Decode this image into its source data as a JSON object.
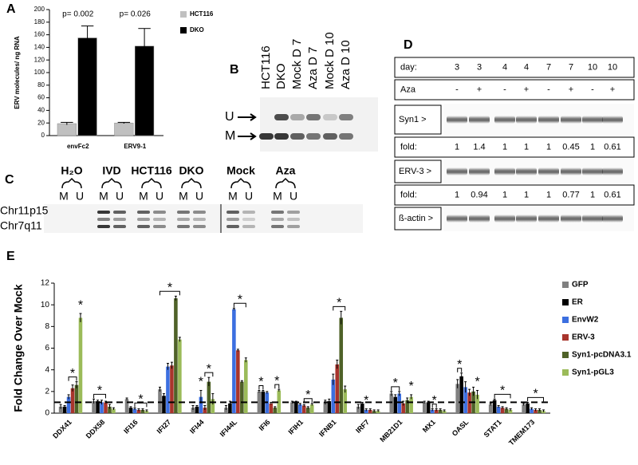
{
  "chart_data": [
    {
      "type": "bar",
      "panel": "A",
      "ylabel": "ERV molecules/ ng RNA",
      "categories": [
        "envFc2",
        "ERV9-1"
      ],
      "series": [
        {
          "name": "HCT116",
          "color": "#c0c0c0",
          "values": [
            19,
            20
          ],
          "errors": [
            2,
            1
          ]
        },
        {
          "name": "DKO",
          "color": "#000000",
          "values": [
            155,
            142
          ],
          "errors": [
            19,
            28
          ]
        }
      ],
      "annotations": [
        "p= 0.002",
        "p= 0.026"
      ],
      "ylim": [
        0,
        200
      ],
      "yticks": [
        0,
        20,
        40,
        60,
        80,
        100,
        120,
        140,
        160,
        180,
        200
      ],
      "legend": "right"
    },
    {
      "type": "bar",
      "panel": "E",
      "ylabel": "Fold Change Over Mock",
      "categories": [
        "DDX41",
        "DDX58",
        "IFI16",
        "IFI27",
        "IFI44",
        "IFI44L",
        "IFI6",
        "IFIH1",
        "IFNB1",
        "IRF7",
        "MB21D1",
        "MX1",
        "OASL",
        "STAT1",
        "TMEM173"
      ],
      "series": [
        {
          "name": "GFP",
          "color": "#808080",
          "values": [
            0.6,
            1.1,
            1.3,
            2.2,
            0.5,
            0.5,
            2.0,
            1.0,
            1.0,
            0.6,
            1.8,
            1.0,
            2.7,
            0.8,
            0.8
          ],
          "errors": [
            0.2,
            0.2,
            0.1,
            0.2,
            0.2,
            0.2,
            0.1,
            0.1,
            0.2,
            0.2,
            0.2,
            0.1,
            0.4,
            0.1,
            0.1
          ]
        },
        {
          "name": "ER",
          "color": "#000000",
          "values": [
            0.6,
            1.1,
            0.5,
            1.6,
            0.6,
            0.9,
            2.0,
            1.0,
            1.1,
            0.9,
            1.5,
            1.0,
            3.4,
            1.2,
            0.9
          ],
          "errors": [
            0.1,
            0.1,
            0.1,
            0.2,
            0.1,
            0.2,
            0.1,
            0.1,
            0.2,
            0.1,
            0.2,
            0.1,
            0.3,
            0.1,
            0.1
          ]
        },
        {
          "name": "EnvW2",
          "color": "#3c6fe0",
          "values": [
            1.5,
            1.0,
            0.4,
            4.3,
            1.5,
            9.6,
            1.9,
            0.8,
            3.1,
            0.3,
            1.8,
            0.3,
            2.4,
            0.6,
            0.4
          ],
          "errors": [
            0.2,
            0.2,
            0.1,
            0.3,
            0.6,
            0.1,
            0.1,
            0.1,
            0.5,
            0.1,
            0.2,
            0.1,
            0.5,
            0.1,
            0.1
          ]
        },
        {
          "name": "ERV-3",
          "color": "#a8342c",
          "values": [
            2.3,
            1.0,
            0.3,
            4.4,
            0.5,
            5.8,
            0.9,
            0.7,
            4.5,
            0.3,
            0.9,
            0.3,
            1.9,
            0.5,
            0.3
          ],
          "errors": [
            0.3,
            0.1,
            0.1,
            0.3,
            0.2,
            0.1,
            0.1,
            0.1,
            0.4,
            0.1,
            0.2,
            0.1,
            0.3,
            0.1,
            0.1
          ]
        },
        {
          "name": "Syn1-pcDNA3.1",
          "color": "#4f6228",
          "values": [
            2.6,
            0.6,
            0.3,
            10.6,
            2.9,
            2.9,
            0.5,
            0.5,
            8.8,
            0.2,
            1.2,
            0.3,
            2.0,
            0.4,
            0.3
          ],
          "errors": [
            0.3,
            0.2,
            0.1,
            0.2,
            0.4,
            0.1,
            0.1,
            0.1,
            0.6,
            0.1,
            0.2,
            0.1,
            0.4,
            0.1,
            0.1
          ]
        },
        {
          "name": "Syn1-pGL3",
          "color": "#9bbb59",
          "values": [
            8.8,
            0.4,
            0.2,
            6.8,
            1.3,
            4.9,
            2.1,
            0.8,
            2.2,
            0.2,
            1.5,
            0.2,
            1.7,
            0.3,
            0.2
          ],
          "errors": [
            0.4,
            0.1,
            0.1,
            0.2,
            0.5,
            0.2,
            0.1,
            0.1,
            0.3,
            0.1,
            0.2,
            0.1,
            0.4,
            0.1,
            0.1
          ]
        }
      ],
      "reference_line": 1,
      "significance": [
        {
          "label": "*",
          "category": "DDX41",
          "series": [
            "EnvW2",
            "Syn1-pcDNA3.1"
          ]
        },
        {
          "label": "*",
          "category": "DDX41",
          "series": [
            "Syn1-pGL3"
          ]
        },
        {
          "label": "*",
          "category": "DDX58",
          "series": [
            "GFP",
            "ERV-3"
          ]
        },
        {
          "label": "*",
          "category": "IFI16",
          "series": [
            "EnvW2",
            "Syn1-pGL3"
          ]
        },
        {
          "label": "*",
          "category": "IFI27",
          "series": [
            "GFP",
            "Syn1-pGL3"
          ]
        },
        {
          "label": "*",
          "category": "IFI44",
          "series": [
            "EnvW2"
          ]
        },
        {
          "label": "*",
          "category": "IFI44",
          "series": [
            "ERV-3",
            "Syn1-pGL3"
          ]
        },
        {
          "label": "*",
          "category": "IFI44L",
          "series": [
            "EnvW2",
            "Syn1-pGL3"
          ]
        },
        {
          "label": "*",
          "category": "IFI6",
          "series": [
            "GFP",
            "ER"
          ]
        },
        {
          "label": "*",
          "category": "IFI6",
          "series": [
            "Syn1-pcDNA3.1",
            "Syn1-pGL3"
          ]
        },
        {
          "label": "*",
          "category": "IFIH1",
          "series": [
            "ERV-3",
            "Syn1-pGL3"
          ]
        },
        {
          "label": "*",
          "category": "IFNB1",
          "series": [
            "EnvW2",
            "Syn1-pGL3"
          ]
        },
        {
          "label": "*",
          "category": "IRF7",
          "series": [
            "EnvW2"
          ]
        },
        {
          "label": "*",
          "category": "MB21D1",
          "series": [
            "GFP",
            "EnvW2"
          ]
        },
        {
          "label": "*",
          "category": "MB21D1",
          "series": [
            "Syn1-pGL3"
          ]
        },
        {
          "label": "*",
          "category": "MX1",
          "series": [
            "EnvW2",
            "ERV-3"
          ]
        },
        {
          "label": "*",
          "category": "OASL",
          "series": [
            "GFP",
            "ER"
          ]
        },
        {
          "label": "*",
          "category": "OASL",
          "series": [
            "Syn1-pGL3"
          ]
        },
        {
          "label": "*",
          "category": "STAT1",
          "series": [
            "ER",
            "Syn1-pGL3"
          ]
        },
        {
          "label": "*",
          "category": "TMEM173",
          "series": [
            "ER",
            "Syn1-pGL3"
          ]
        }
      ],
      "ylim": [
        0,
        12
      ],
      "yticks": [
        0,
        2,
        4,
        6,
        8,
        10,
        12
      ],
      "legend": "right"
    }
  ],
  "gel_b": {
    "panel": "B",
    "lanes": [
      "HCT116",
      "DKO",
      "Mock D 7",
      "Aza D 7",
      "Mock D 10",
      "Aza D 10"
    ],
    "bands": [
      "U",
      "M"
    ]
  },
  "gel_c": {
    "panel": "C",
    "groups": [
      "H₂O",
      "IVD",
      "HCT116",
      "DKO",
      "Mock",
      "Aza"
    ],
    "wells": [
      "M",
      "U"
    ],
    "loci": [
      "Chr11p15",
      "Chr7q11"
    ]
  },
  "western_d": {
    "panel": "D",
    "rows": [
      {
        "label": "day:",
        "cells": [
          3,
          3,
          4,
          4,
          7,
          7,
          10,
          10
        ]
      },
      {
        "label": "Aza",
        "cells": [
          "-",
          "+",
          "-",
          "+",
          "-",
          "+",
          "-",
          "+"
        ]
      },
      {
        "label": "Syn1 >"
      },
      {
        "label": "fold:",
        "cells": [
          1,
          1.4,
          1,
          1,
          1,
          0.45,
          1,
          0.61
        ]
      },
      {
        "label": "ERV-3 >"
      },
      {
        "label": "fold:",
        "cells": [
          1,
          0.94,
          1,
          1,
          1,
          0.77,
          1,
          0.61
        ]
      },
      {
        "label": "ß-actin >"
      }
    ]
  }
}
